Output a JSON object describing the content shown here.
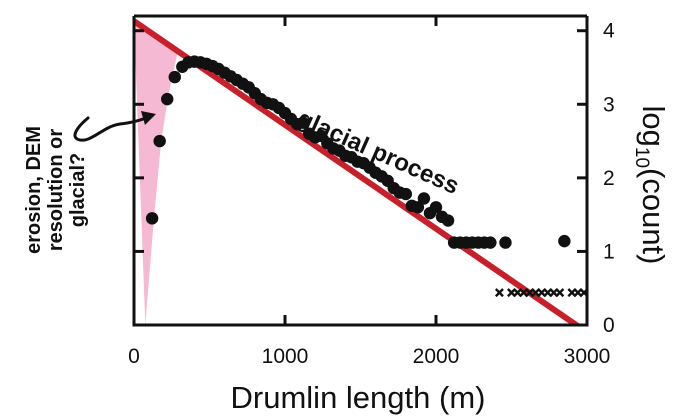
{
  "chart_data": {
    "type": "scatter",
    "xlabel": "Drumlin length (m)",
    "ylabel_prefix": "log",
    "ylabel_sub": "10",
    "ylabel_suffix": "(count)",
    "xlim": [
      0,
      3000
    ],
    "ylim": [
      0,
      4.2
    ],
    "x_ticks": [
      0,
      1000,
      2000,
      3000
    ],
    "y_ticks": [
      0,
      1,
      2,
      3,
      4
    ],
    "grid": false,
    "points": [
      {
        "x": 120,
        "y": 1.45
      },
      {
        "x": 170,
        "y": 2.5
      },
      {
        "x": 220,
        "y": 3.07
      },
      {
        "x": 270,
        "y": 3.37
      },
      {
        "x": 320,
        "y": 3.51
      },
      {
        "x": 360,
        "y": 3.57
      },
      {
        "x": 400,
        "y": 3.58
      },
      {
        "x": 440,
        "y": 3.57
      },
      {
        "x": 480,
        "y": 3.55
      },
      {
        "x": 520,
        "y": 3.52
      },
      {
        "x": 560,
        "y": 3.48
      },
      {
        "x": 600,
        "y": 3.43
      },
      {
        "x": 640,
        "y": 3.38
      },
      {
        "x": 680,
        "y": 3.33
      },
      {
        "x": 720,
        "y": 3.28
      },
      {
        "x": 760,
        "y": 3.23
      },
      {
        "x": 800,
        "y": 3.15
      },
      {
        "x": 840,
        "y": 3.07
      },
      {
        "x": 880,
        "y": 3.02
      },
      {
        "x": 920,
        "y": 3.0
      },
      {
        "x": 960,
        "y": 2.95
      },
      {
        "x": 1000,
        "y": 2.88
      },
      {
        "x": 1040,
        "y": 2.8
      },
      {
        "x": 1080,
        "y": 2.73
      },
      {
        "x": 1120,
        "y": 2.75
      },
      {
        "x": 1160,
        "y": 2.6
      },
      {
        "x": 1200,
        "y": 2.55
      },
      {
        "x": 1240,
        "y": 2.57
      },
      {
        "x": 1280,
        "y": 2.47
      },
      {
        "x": 1320,
        "y": 2.4
      },
      {
        "x": 1360,
        "y": 2.37
      },
      {
        "x": 1400,
        "y": 2.3
      },
      {
        "x": 1440,
        "y": 2.28
      },
      {
        "x": 1480,
        "y": 2.22
      },
      {
        "x": 1520,
        "y": 2.2
      },
      {
        "x": 1560,
        "y": 2.14
      },
      {
        "x": 1600,
        "y": 2.07
      },
      {
        "x": 1640,
        "y": 2.02
      },
      {
        "x": 1680,
        "y": 1.96
      },
      {
        "x": 1720,
        "y": 1.86
      },
      {
        "x": 1760,
        "y": 1.8
      },
      {
        "x": 1800,
        "y": 1.78
      },
      {
        "x": 1840,
        "y": 1.62
      },
      {
        "x": 1880,
        "y": 1.6
      },
      {
        "x": 1920,
        "y": 1.72
      },
      {
        "x": 1960,
        "y": 1.52
      },
      {
        "x": 2000,
        "y": 1.6
      },
      {
        "x": 2040,
        "y": 1.47
      },
      {
        "x": 2080,
        "y": 1.42
      },
      {
        "x": 2120,
        "y": 1.12
      },
      {
        "x": 2160,
        "y": 1.12
      },
      {
        "x": 2200,
        "y": 1.12
      },
      {
        "x": 2240,
        "y": 1.12
      },
      {
        "x": 2280,
        "y": 1.12
      },
      {
        "x": 2320,
        "y": 1.12
      },
      {
        "x": 2360,
        "y": 1.12
      },
      {
        "x": 2460,
        "y": 1.12
      },
      {
        "x": 2850,
        "y": 1.14
      }
    ],
    "zero_markers_x": [
      2420,
      2500,
      2540,
      2580,
      2620,
      2660,
      2700,
      2740,
      2780,
      2820,
      2900,
      2940,
      2980
    ],
    "zero_marker_y": 0.44,
    "fit_line": {
      "x": [
        0,
        3000
      ],
      "y": [
        4.13,
        -0.1
      ],
      "color": "#c8202a"
    },
    "shaded_region": {
      "color": "#f5b9d3",
      "polygon": [
        [
          0,
          4.13
        ],
        [
          290,
          3.72
        ],
        [
          230,
          3.15
        ],
        [
          180,
          2.5
        ],
        [
          130,
          1.4
        ],
        [
          75,
          0
        ]
      ]
    },
    "annotations": {
      "line_label": "glacial process",
      "region_label": [
        "erosion, DEM",
        "resolution or",
        "glacial?"
      ]
    },
    "colors": {
      "points": "#111111",
      "axes": "#111111"
    }
  }
}
